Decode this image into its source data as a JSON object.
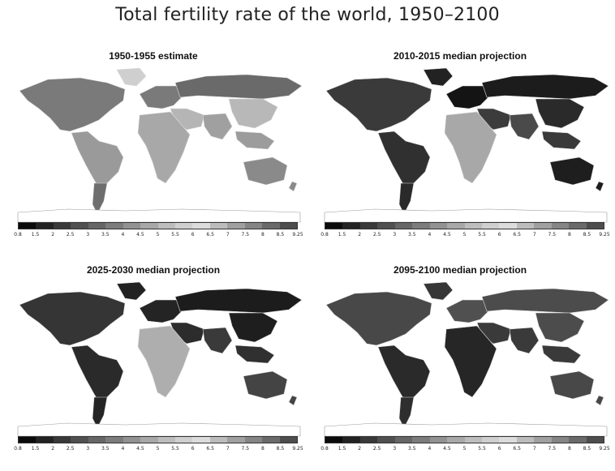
{
  "title": "Total fertility rate of the world, 1950–2100",
  "legend": {
    "ticks": [
      "0.8",
      "1.5",
      "2",
      "2.5",
      "3",
      "3.5",
      "4",
      "4.5",
      "5",
      "5.5",
      "6",
      "6.5",
      "7",
      "7.5",
      "8",
      "8.5",
      "9.25"
    ],
    "colors": [
      "#0b0b0b",
      "#222222",
      "#393939",
      "#505050",
      "#666666",
      "#7c7c7c",
      "#929292",
      "#a8a8a8",
      "#bdbdbd",
      "#cfcfcf",
      "#dcdcdc",
      "#bcbcbc",
      "#a0a0a0",
      "#858585",
      "#6a6a6a",
      "#4d4d4d"
    ]
  },
  "panels": [
    {
      "title": "1950-1955 estimate",
      "regions": {
        "north_america": "#7a7a7a",
        "greenland": "#cfcfcf",
        "latin_america": "#9a9a9a",
        "southern_cone": "#6e6e6e",
        "europe": "#7a7a7a",
        "russia": "#6a6a6a",
        "middle_east": "#b5b5b5",
        "africa": "#a8a8a8",
        "south_asia": "#a0a0a0",
        "east_asia": "#b8b8b8",
        "southeast_asia": "#9c9c9c",
        "australia": "#8a8a8a"
      }
    },
    {
      "title": "2010-2015 median projection",
      "regions": {
        "north_america": "#3a3a3a",
        "greenland": "#222222",
        "latin_america": "#303030",
        "southern_cone": "#2a2a2a",
        "europe": "#141414",
        "russia": "#1c1c1c",
        "middle_east": "#3c3c3c",
        "africa": "#a8a8a8",
        "south_asia": "#4a4a4a",
        "east_asia": "#2a2a2a",
        "southeast_asia": "#3a3a3a",
        "australia": "#1e1e1e"
      }
    },
    {
      "title": "2025-2030 median projection",
      "regions": {
        "north_america": "#353535",
        "greenland": "#222222",
        "latin_america": "#2a2a2a",
        "southern_cone": "#252525",
        "europe": "#242424",
        "russia": "#1c1c1c",
        "middle_east": "#2c2c2c",
        "africa": "#aeaeae",
        "south_asia": "#3a3a3a",
        "east_asia": "#1e1e1e",
        "southeast_asia": "#303030",
        "australia": "#444444"
      }
    },
    {
      "title": "2095-2100 median projection",
      "regions": {
        "north_america": "#484848",
        "greenland": "#363636",
        "latin_america": "#2a2a2a",
        "southern_cone": "#2e2e2e",
        "europe": "#505050",
        "russia": "#4c4c4c",
        "middle_east": "#3a3a3a",
        "africa": "#262626",
        "south_asia": "#3a3a3a",
        "east_asia": "#4c4c4c",
        "southeast_asia": "#3a3a3a",
        "australia": "#484848"
      }
    }
  ]
}
